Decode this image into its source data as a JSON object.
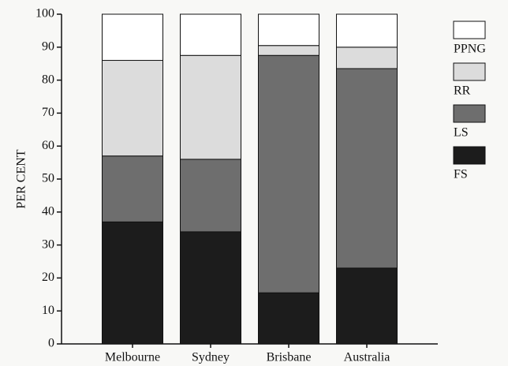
{
  "chart_data": {
    "type": "stacked_bar",
    "ylabel": "PER CENT",
    "categories": [
      "Melbourne",
      "Sydney",
      "Brisbane",
      "Australia"
    ],
    "series": [
      {
        "name": "FS",
        "color": "#1c1c1c",
        "values": [
          37,
          34,
          15.5,
          23
        ]
      },
      {
        "name": "LS",
        "color": "#6e6e6e",
        "values": [
          20,
          22,
          72,
          60.5
        ]
      },
      {
        "name": "RR",
        "color": "#dcdcdc",
        "values": [
          29,
          31.5,
          3,
          6.5
        ]
      },
      {
        "name": "PPNG",
        "color": "#ffffff",
        "values": [
          14,
          12.5,
          9.5,
          10
        ]
      }
    ],
    "ylim": [
      0,
      100
    ],
    "yticks": [
      0,
      10,
      20,
      30,
      40,
      50,
      60,
      70,
      80,
      90,
      100
    ],
    "legend": "right"
  }
}
